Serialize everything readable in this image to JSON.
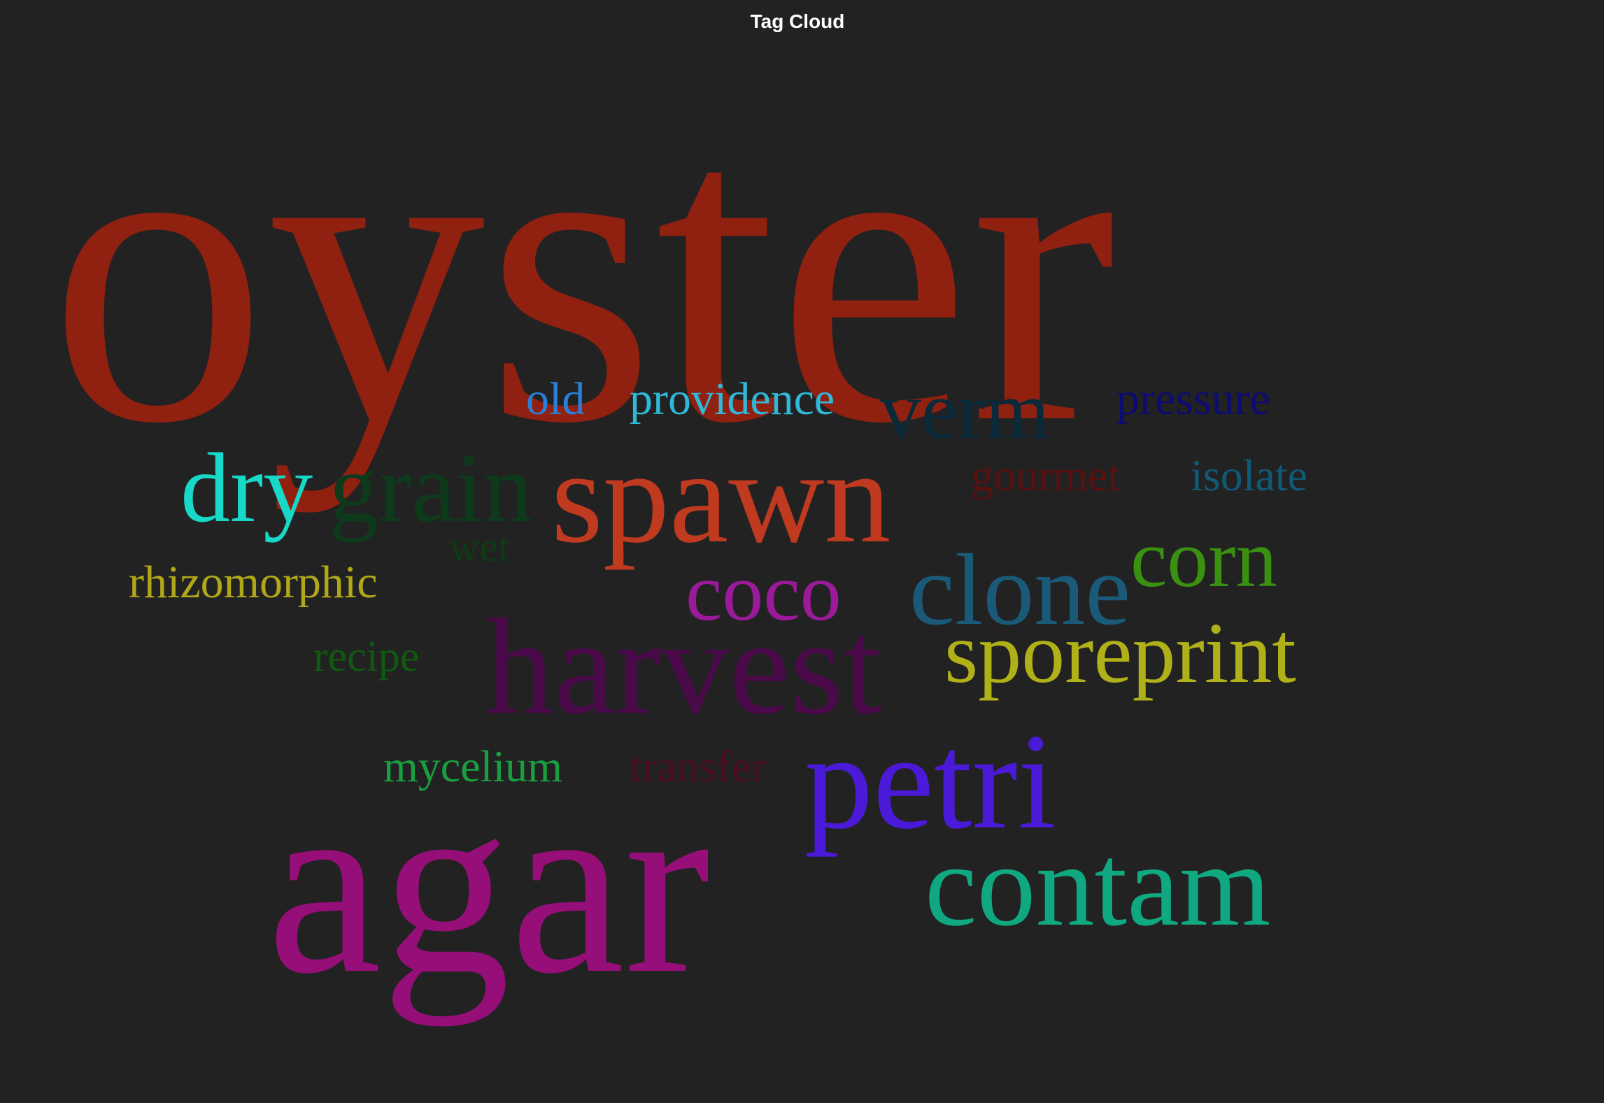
{
  "panel": {
    "title": "Tag Cloud"
  },
  "background_color": "#222222",
  "tags": [
    {
      "id": "oyster",
      "label": "oyster",
      "color": "#902010"
    },
    {
      "id": "old",
      "label": "old",
      "color": "#2a7fd6"
    },
    {
      "id": "providence",
      "label": "providence",
      "color": "#30b8d8"
    },
    {
      "id": "verm",
      "label": "verm",
      "color": "#0a2a3a"
    },
    {
      "id": "pressure",
      "label": "pressure",
      "color": "#0c0c72"
    },
    {
      "id": "dry",
      "label": "dry",
      "color": "#18d8c8"
    },
    {
      "id": "grain",
      "label": "grain",
      "color": "#0e3a1c"
    },
    {
      "id": "spawn",
      "label": "spawn",
      "color": "#c03a20"
    },
    {
      "id": "gourmet",
      "label": "gourmet",
      "color": "#5a1010"
    },
    {
      "id": "isolate",
      "label": "isolate",
      "color": "#105a78"
    },
    {
      "id": "wet",
      "label": "wet",
      "color": "#0e3a14"
    },
    {
      "id": "corn",
      "label": "corn",
      "color": "#3a9010"
    },
    {
      "id": "rhizomorphic",
      "label": "rhizomorphic",
      "color": "#b0a818"
    },
    {
      "id": "coco",
      "label": "coco",
      "color": "#9a1a9a"
    },
    {
      "id": "clone",
      "label": "clone",
      "color": "#1a5a78"
    },
    {
      "id": "recipe",
      "label": "recipe",
      "color": "#105a10"
    },
    {
      "id": "harvest",
      "label": "harvest",
      "color": "#4a0a4a"
    },
    {
      "id": "sporeprint",
      "label": "sporeprint",
      "color": "#b0b018"
    },
    {
      "id": "mycelium",
      "label": "mycelium",
      "color": "#18a040"
    },
    {
      "id": "transfer",
      "label": "transfer",
      "color": "#4a0c1e"
    },
    {
      "id": "petri",
      "label": "petri",
      "color": "#4a1ad8"
    },
    {
      "id": "agar",
      "label": "agar",
      "color": "#960e78"
    },
    {
      "id": "contam",
      "label": "contam",
      "color": "#10a880"
    }
  ]
}
